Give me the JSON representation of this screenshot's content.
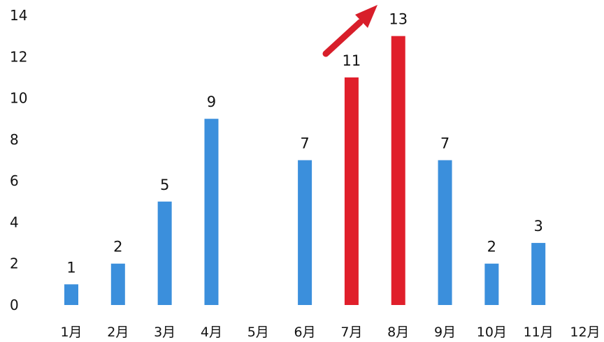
{
  "chart_data": {
    "type": "bar",
    "categories": [
      "1月",
      "2月",
      "3月",
      "4月",
      "5月",
      "6月",
      "7月",
      "8月",
      "9月",
      "10月",
      "11月",
      "12月"
    ],
    "values": [
      1,
      2,
      5,
      9,
      null,
      7,
      11,
      13,
      7,
      2,
      3,
      null
    ],
    "data_labels": [
      "1",
      "2",
      "5",
      "9",
      "",
      "7",
      "11",
      "13",
      "7",
      "2",
      "3",
      ""
    ],
    "highlight_categories": [
      "7月",
      "8月"
    ],
    "yticks": [
      "0",
      "2",
      "4",
      "6",
      "8",
      "10",
      "12",
      "14"
    ],
    "ylim": [
      0,
      14
    ],
    "grid": false,
    "legend": "none",
    "colors": {
      "bar": "#3b8fdc",
      "highlight": "#e01f2b",
      "arrow": "#d81e2a",
      "text": "#111111"
    },
    "annotations": [
      {
        "type": "arrow",
        "icon": "up-right-arrow-icon",
        "points_to": "8月"
      }
    ]
  }
}
